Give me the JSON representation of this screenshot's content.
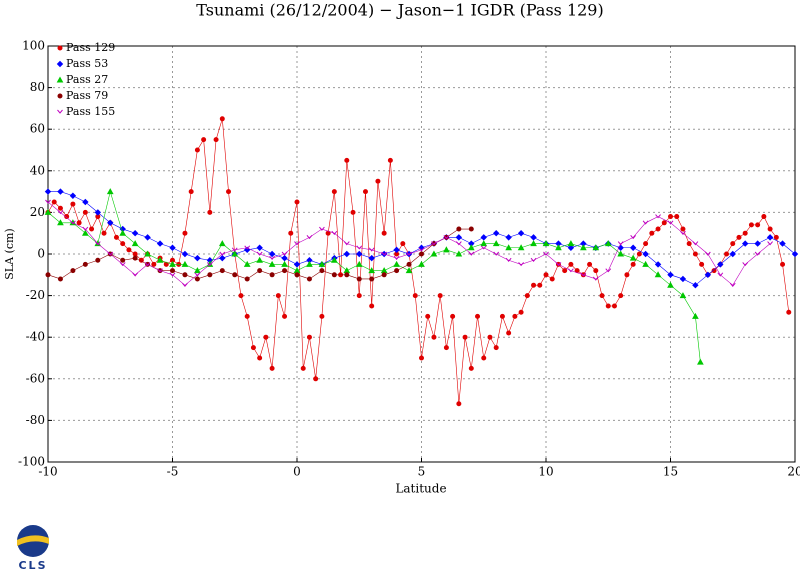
{
  "chart_data": {
    "type": "line",
    "title": "Tsunami (26/12/2004) − Jason−1 IGDR (Pass 129)",
    "x_label": "Latitude",
    "y_label": "SLA (cm)",
    "xlim": [
      -10,
      20
    ],
    "xticks": [
      -10,
      -5,
      0,
      5,
      10,
      15,
      20
    ],
    "ylim": [
      -100,
      100
    ],
    "yticks": [
      -100,
      -80,
      -60,
      -40,
      -20,
      0,
      20,
      40,
      60,
      80,
      100
    ],
    "grid": true,
    "legend": "upper left",
    "logo": "CLS",
    "series": [
      {
        "name": "Pass 129",
        "color": "#e00000",
        "marker": "circle",
        "x": [
          -10,
          -9.75,
          -9.5,
          -9.25,
          -9,
          -8.75,
          -8.5,
          -8.25,
          -8,
          -7.75,
          -7.5,
          -7.25,
          -7,
          -6.75,
          -6.5,
          -6.25,
          -6,
          -5.75,
          -5.5,
          -5.25,
          -5,
          -4.75,
          -4.5,
          -4.25,
          -4,
          -3.75,
          -3.5,
          -3.25,
          -3,
          -2.75,
          -2.5,
          -2.25,
          -2,
          -1.75,
          -1.5,
          -1.25,
          -1,
          -0.75,
          -0.5,
          -0.25,
          0,
          0.25,
          0.5,
          0.75,
          1,
          1.25,
          1.5,
          1.75,
          2,
          2.25,
          2.5,
          2.75,
          3,
          3.25,
          3.5,
          3.75,
          4,
          4.25,
          4.5,
          4.75,
          5,
          5.25,
          5.5,
          5.75,
          6,
          6.25,
          6.5,
          6.75,
          7,
          7.25,
          7.5,
          7.75,
          8,
          8.25,
          8.5,
          8.75,
          9,
          9.25,
          9.5,
          9.75,
          10,
          10.25,
          10.5,
          10.75,
          11,
          11.25,
          11.5,
          11.75,
          12,
          12.25,
          12.5,
          12.75,
          13,
          13.25,
          13.5,
          13.75,
          14,
          14.25,
          14.5,
          14.75,
          15,
          15.25,
          15.5,
          15.75,
          16,
          16.25,
          16.5,
          16.75,
          17,
          17.25,
          17.5,
          17.75,
          18,
          18.25,
          18.5,
          18.75,
          19,
          19.25,
          19.5,
          19.75
        ],
        "values": [
          20,
          25,
          22,
          18,
          24,
          15,
          20,
          12,
          18,
          10,
          15,
          8,
          5,
          2,
          0,
          -3,
          0,
          -5,
          -2,
          -5,
          -3,
          -5,
          10,
          30,
          50,
          55,
          20,
          55,
          65,
          30,
          0,
          -20,
          -30,
          -45,
          -50,
          -40,
          -55,
          -20,
          -30,
          10,
          25,
          -55,
          -40,
          -60,
          -30,
          10,
          30,
          -10,
          45,
          20,
          -20,
          30,
          -25,
          35,
          10,
          45,
          0,
          5,
          0,
          -20,
          -50,
          -30,
          -40,
          -20,
          -45,
          -30,
          -72,
          -40,
          -55,
          -30,
          -50,
          -40,
          -45,
          -30,
          -38,
          -30,
          -28,
          -20,
          -15,
          -15,
          -10,
          -12,
          -5,
          -8,
          -5,
          -8,
          -10,
          -5,
          -8,
          -20,
          -25,
          -25,
          -20,
          -10,
          -5,
          0,
          5,
          10,
          12,
          15,
          18,
          18,
          12,
          5,
          0,
          -5,
          -10,
          -8,
          -5,
          0,
          5,
          8,
          10,
          14,
          14,
          18,
          12,
          8,
          -5,
          -28
        ]
      },
      {
        "name": "Pass 53",
        "color": "#0000ff",
        "marker": "diamond",
        "x": [
          -10,
          -9.5,
          -9,
          -8.5,
          -8,
          -7.5,
          -7,
          -6.5,
          -6,
          -5.5,
          -5,
          -4.5,
          -4,
          -3.5,
          -3,
          -2.5,
          -2,
          -1.5,
          -1,
          -0.5,
          0,
          0.5,
          1,
          1.5,
          2,
          2.5,
          3,
          3.5,
          4,
          4.5,
          5,
          5.5,
          6,
          6.5,
          7,
          7.5,
          8,
          8.5,
          9,
          9.5,
          10,
          10.5,
          11,
          11.5,
          12,
          12.5,
          13,
          13.5,
          14,
          14.5,
          15,
          15.5,
          16,
          16.5,
          17,
          17.5,
          18,
          18.5,
          19,
          19.5,
          20
        ],
        "values": [
          30,
          30,
          28,
          25,
          20,
          15,
          12,
          10,
          8,
          5,
          3,
          0,
          -2,
          -3,
          -2,
          0,
          2,
          3,
          0,
          -2,
          -5,
          -3,
          -5,
          -2,
          0,
          0,
          -2,
          0,
          2,
          0,
          3,
          5,
          8,
          8,
          5,
          8,
          10,
          8,
          10,
          8,
          5,
          5,
          3,
          5,
          3,
          5,
          3,
          3,
          0,
          -5,
          -10,
          -12,
          -15,
          -10,
          -5,
          0,
          5,
          5,
          8,
          5,
          0
        ]
      },
      {
        "name": "Pass 27",
        "color": "#00c800",
        "marker": "triangle",
        "x": [
          -10,
          -9.5,
          -9,
          -8.5,
          -8,
          -7.5,
          -7,
          -6.5,
          -6,
          -5.5,
          -5,
          -4.5,
          -4,
          -3.5,
          -3,
          -2.5,
          -2,
          -1.5,
          -1,
          -0.5,
          0,
          0.5,
          1,
          1.5,
          2,
          2.5,
          3,
          3.5,
          4,
          4.5,
          5,
          5.5,
          6,
          6.5,
          7,
          7.5,
          8,
          8.5,
          9,
          9.5,
          10,
          10.5,
          11,
          11.5,
          12,
          12.5,
          13,
          13.5,
          14,
          14.5,
          15,
          15.5,
          16,
          16.2
        ],
        "values": [
          20,
          15,
          15,
          10,
          5,
          30,
          10,
          5,
          0,
          -3,
          -5,
          -5,
          -8,
          -5,
          5,
          0,
          -5,
          -3,
          -5,
          -5,
          -8,
          -5,
          -5,
          -3,
          -8,
          -5,
          -8,
          -8,
          -5,
          -8,
          -5,
          0,
          2,
          0,
          3,
          5,
          5,
          3,
          3,
          5,
          5,
          3,
          5,
          3,
          3,
          5,
          0,
          -2,
          -5,
          -10,
          -15,
          -20,
          -30,
          -52
        ]
      },
      {
        "name": "Pass 79",
        "color": "#8b0000",
        "marker": "circle",
        "x": [
          -10,
          -9.5,
          -9,
          -8.5,
          -8,
          -7.5,
          -7,
          -6.5,
          -6,
          -5.5,
          -5,
          -4.5,
          -4,
          -3.5,
          -3,
          -2.5,
          -2,
          -1.5,
          -1,
          -0.5,
          0,
          0.5,
          1,
          1.5,
          2,
          2.5,
          3,
          3.5,
          4,
          4.5,
          5,
          5.5,
          6,
          6.5,
          7
        ],
        "values": [
          -10,
          -12,
          -8,
          -5,
          -3,
          0,
          -3,
          -2,
          -5,
          -8,
          -8,
          -10,
          -12,
          -10,
          -8,
          -10,
          -12,
          -8,
          -10,
          -8,
          -10,
          -12,
          -8,
          -10,
          -10,
          -12,
          -12,
          -10,
          -8,
          -5,
          0,
          5,
          8,
          12,
          12
        ]
      },
      {
        "name": "Pass 155",
        "color": "#c000c0",
        "marker": "chevron",
        "x": [
          -10,
          -9.5,
          -9,
          -8.5,
          -8,
          -7.5,
          -7,
          -6.5,
          -6,
          -5.5,
          -5,
          -4.5,
          -4,
          -3.5,
          -3,
          -2.5,
          -2,
          -1.5,
          -1,
          -0.5,
          0,
          0.5,
          1,
          1.5,
          2,
          2.5,
          3,
          3.5,
          4,
          4.5,
          5,
          5.5,
          6,
          6.5,
          7,
          7.5,
          8,
          8.5,
          9,
          9.5,
          10,
          10.5,
          11,
          11.5,
          12,
          12.5,
          13,
          13.5,
          14,
          14.5,
          15,
          15.5,
          16,
          16.5,
          17,
          17.5,
          18,
          18.5,
          19
        ],
        "values": [
          25,
          20,
          15,
          12,
          5,
          0,
          -5,
          -10,
          -5,
          -8,
          -10,
          -15,
          -10,
          -5,
          0,
          2,
          3,
          0,
          -2,
          0,
          5,
          8,
          12,
          10,
          5,
          3,
          2,
          0,
          -2,
          0,
          2,
          5,
          8,
          5,
          0,
          3,
          0,
          -3,
          -5,
          -3,
          0,
          -5,
          -8,
          -10,
          -12,
          -8,
          5,
          8,
          15,
          18,
          15,
          10,
          5,
          0,
          -10,
          -15,
          -5,
          0,
          5
        ]
      }
    ]
  }
}
